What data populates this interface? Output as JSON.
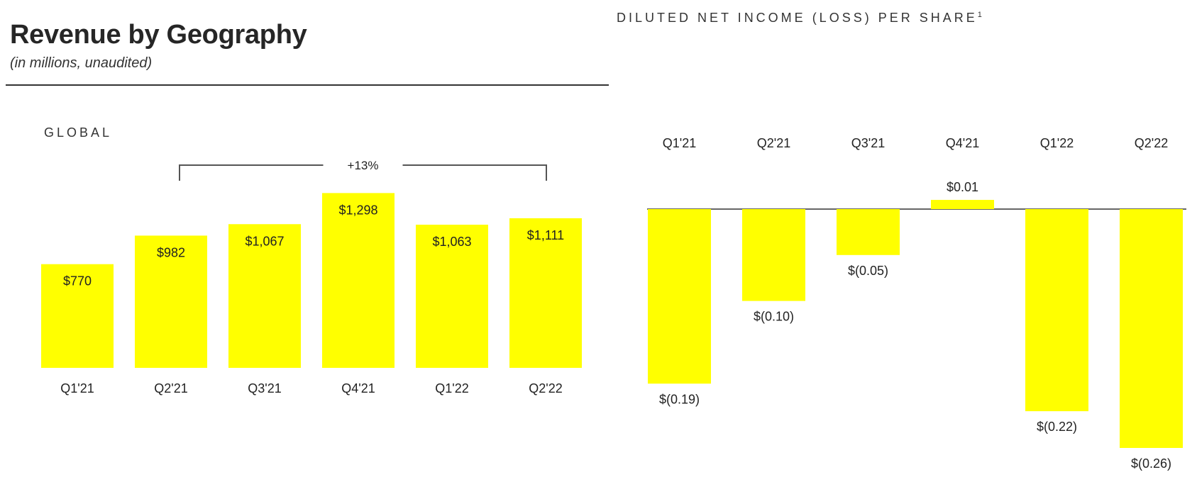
{
  "page": {
    "title": "Revenue by Geography",
    "subtitle": "(in millions, unaudited)",
    "panel_label": "GLOBAL",
    "right_title": "DILUTED NET INCOME (LOSS) PER SHARE",
    "right_title_sup": "1"
  },
  "colors": {
    "bar": "#FFFF00",
    "axis": "#333333",
    "bracket": "#555555",
    "text": "#222222"
  },
  "chart_data": [
    {
      "type": "bar",
      "title": "GLOBAL",
      "categories": [
        "Q1'21",
        "Q2'21",
        "Q3'21",
        "Q4'21",
        "Q1'22",
        "Q2'22"
      ],
      "values": [
        770,
        982,
        1067,
        1298,
        1063,
        1111
      ],
      "value_labels": [
        "$770",
        "$982",
        "$1,067",
        "$1,298",
        "$1,063",
        "$1,111"
      ],
      "annotation": {
        "text": "+13%",
        "from": "Q2'21",
        "to": "Q2'22"
      },
      "ylim": [
        0,
        1300
      ],
      "grid": false,
      "legend": "none"
    },
    {
      "type": "bar",
      "title": "DILUTED NET INCOME (LOSS) PER SHARE",
      "categories": [
        "Q1'21",
        "Q2'21",
        "Q3'21",
        "Q4'21",
        "Q1'22",
        "Q2'22"
      ],
      "values": [
        -0.19,
        -0.1,
        -0.05,
        0.01,
        -0.22,
        -0.26
      ],
      "value_labels": [
        "$(0.19)",
        "$(0.10)",
        "$(0.05)",
        "$0.01",
        "$(0.22)",
        "$(0.26)"
      ],
      "category_axis_position": "top",
      "ylim": [
        -0.26,
        0.01
      ],
      "grid": false,
      "legend": "none"
    }
  ]
}
